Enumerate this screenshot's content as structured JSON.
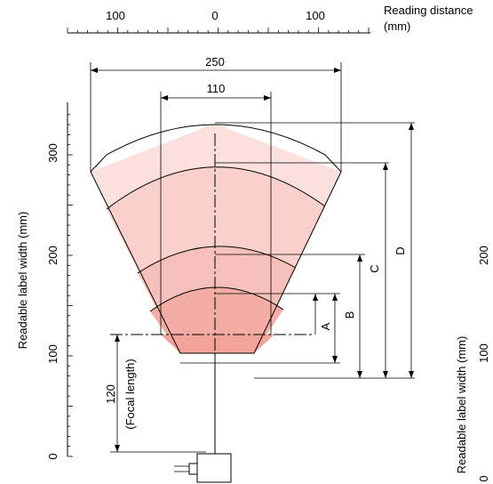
{
  "top_axis": {
    "title_line1": "Reading distance",
    "title_line2": "(mm)",
    "ticks": [
      "100",
      "0",
      "100"
    ]
  },
  "left_axis": {
    "title": "Readable label width (mm)",
    "ticks": [
      "0",
      "100",
      "200",
      "300"
    ]
  },
  "right_axis_partial": {
    "title": "Readable label width (mm)",
    "ticks": [
      "0",
      "100",
      "200"
    ]
  },
  "dimensions": {
    "width_250": "250",
    "width_110": "110",
    "focal_value": "120",
    "focal_label": "(Focal length)",
    "A": "A",
    "B": "B",
    "C": "C",
    "D": "D"
  },
  "colors": {
    "zone_outer": "#fbe0de",
    "zone_d": "#f9d0cb",
    "zone_c": "#f6c0ba",
    "zone_b": "#f3ada5",
    "zone_a": "#f1a497"
  }
}
